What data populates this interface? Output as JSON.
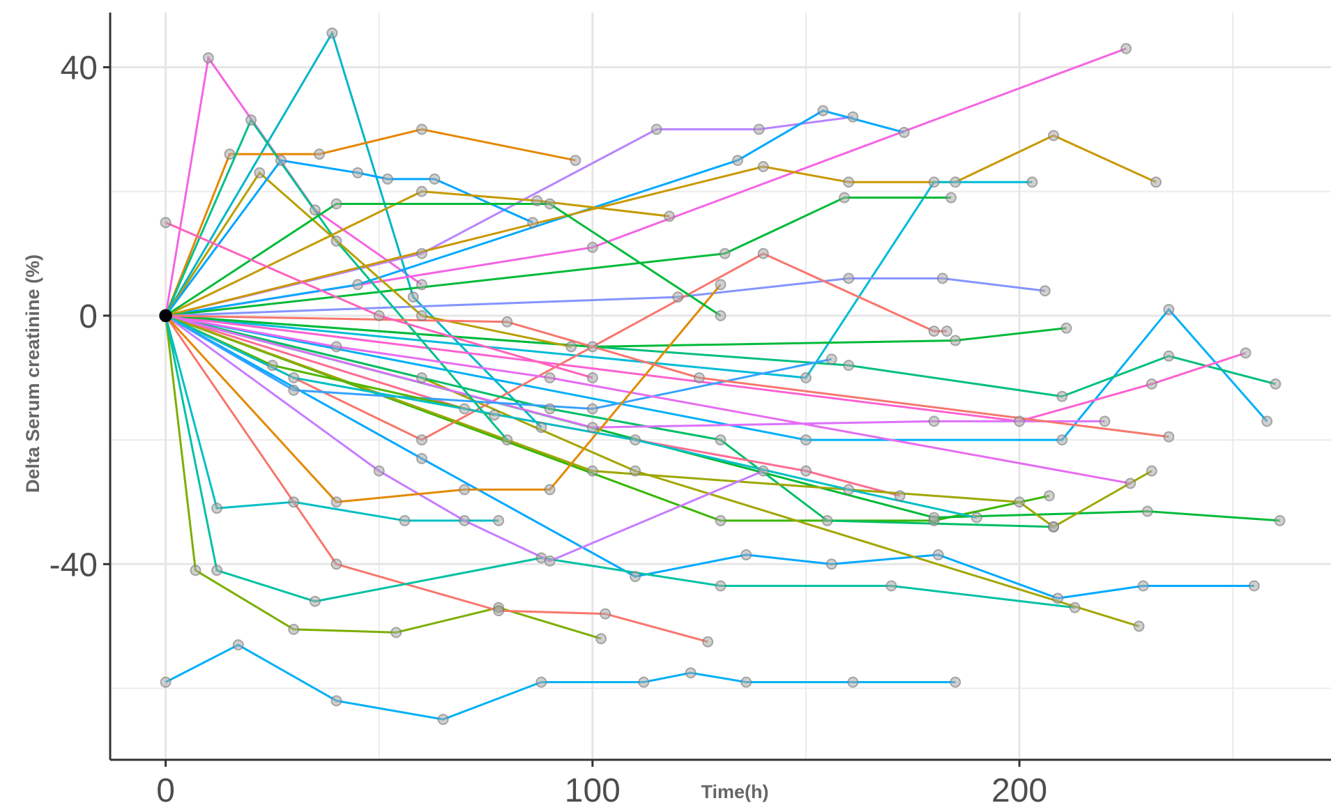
{
  "chart_data": {
    "type": "line",
    "x_label": "Time(h)",
    "y_label": "Delta Serum creatinine (%)",
    "xlim": [
      -13,
      273
    ],
    "ylim": [
      -71.5,
      48.8
    ],
    "xticks": [
      0,
      100,
      200
    ],
    "yticks": [
      -40,
      0,
      40
    ],
    "x_minor_grid": [
      50,
      150,
      250
    ],
    "y_minor_grid": [
      -60,
      -20,
      20
    ],
    "grid": true,
    "series": [
      {
        "color": "#f564e3",
        "x": [
          0,
          10,
          35,
          60
        ],
        "values": [
          0,
          41.5,
          17,
          5
        ]
      },
      {
        "color": "#00b6c8",
        "x": [
          0,
          39,
          58,
          88
        ],
        "values": [
          0,
          45.5,
          3,
          -18
        ]
      },
      {
        "color": "#e58700",
        "x": [
          0,
          15,
          36,
          60,
          96
        ],
        "values": [
          0,
          26,
          26,
          30,
          25
        ]
      },
      {
        "color": "#f564e3",
        "x": [
          0,
          100,
          225
        ],
        "values": [
          0,
          11,
          43
        ]
      },
      {
        "color": "#b983ff",
        "x": [
          0,
          60,
          115,
          139,
          161
        ],
        "values": [
          0,
          10,
          30,
          30,
          32
        ]
      },
      {
        "color": "#00a9ff",
        "x": [
          0,
          45,
          134,
          154,
          173
        ],
        "values": [
          0,
          5,
          25,
          33,
          29.5
        ]
      },
      {
        "color": "#c99800",
        "x": [
          0,
          140,
          160,
          185,
          208,
          232
        ],
        "values": [
          0,
          24,
          21.5,
          21.5,
          29,
          21.5
        ]
      },
      {
        "color": "#00bcd8",
        "x": [
          0,
          150,
          180,
          203
        ],
        "values": [
          0,
          -10,
          21.5,
          21.5
        ]
      },
      {
        "color": "#00ba38",
        "x": [
          0,
          131,
          159,
          184
        ],
        "values": [
          0,
          10,
          19,
          19
        ]
      },
      {
        "color": "#8494ff",
        "x": [
          0,
          120,
          160,
          182,
          206
        ],
        "values": [
          0,
          3,
          6,
          6,
          4
        ]
      },
      {
        "color": "#00b0f6",
        "x": [
          0,
          150,
          210,
          235,
          258
        ],
        "values": [
          0,
          -20,
          -20,
          1,
          -17
        ]
      },
      {
        "color": "#00bf7d",
        "x": [
          0,
          160,
          210,
          235,
          260
        ],
        "values": [
          0,
          -8,
          -13,
          -6.5,
          -11
        ]
      },
      {
        "color": "#fd61d1",
        "x": [
          0,
          200,
          231,
          253
        ],
        "values": [
          0,
          -17,
          -11,
          -6
        ]
      },
      {
        "color": "#39b600",
        "x": [
          0,
          130,
          180,
          207
        ],
        "values": [
          0,
          -33,
          -33,
          -29
        ]
      },
      {
        "color": "#00ba38",
        "x": [
          0,
          180,
          230,
          261
        ],
        "values": [
          0,
          -32.5,
          -31.5,
          -33
        ]
      },
      {
        "color": "#00a9ff",
        "x": [
          0,
          60,
          110,
          136,
          156,
          181,
          209,
          229,
          255
        ],
        "values": [
          0,
          -23,
          -42,
          -38.5,
          -40,
          -38.5,
          -45.5,
          -43.5,
          -43.5
        ]
      },
      {
        "color": "#00bfc4",
        "x": [
          0,
          12,
          30,
          56,
          78
        ],
        "values": [
          0,
          -31,
          -30,
          -33,
          -33
        ]
      },
      {
        "color": "#00b0f6",
        "x": [
          0,
          17,
          40,
          65,
          88,
          112,
          123,
          136,
          161,
          185
        ],
        "values": [
          -59,
          -53,
          -62,
          -65,
          -59,
          -59,
          -57.5,
          -59,
          -59,
          -59
        ]
      },
      {
        "color": "#7cae00",
        "x": [
          0,
          7,
          30,
          54,
          78,
          102
        ],
        "values": [
          0,
          -41,
          -50.5,
          -51,
          -47,
          -52
        ]
      },
      {
        "color": "#f8766d",
        "x": [
          0,
          40,
          78,
          103,
          127
        ],
        "values": [
          0,
          -40,
          -47.5,
          -48,
          -52.5
        ]
      },
      {
        "color": "#00c1a3",
        "x": [
          0,
          12,
          35,
          88,
          130,
          170,
          213
        ],
        "values": [
          0,
          -41,
          -46,
          -39,
          -43.5,
          -43.5,
          -47
        ]
      },
      {
        "color": "#a3a500",
        "x": [
          0,
          60,
          110,
          228
        ],
        "values": [
          0,
          -10,
          -25,
          -50
        ]
      },
      {
        "color": "#f8766d",
        "x": [
          0,
          60,
          140,
          180,
          183
        ],
        "values": [
          0,
          -20,
          10,
          -2.5,
          -2.5
        ]
      },
      {
        "color": "#00be67",
        "x": [
          0,
          90,
          130,
          155,
          208
        ],
        "values": [
          0,
          -15,
          -20,
          -33,
          -34
        ]
      },
      {
        "color": "#ff6c91",
        "x": [
          0,
          70,
          150,
          172
        ],
        "values": [
          0,
          -15,
          -25,
          -29
        ]
      },
      {
        "color": "#dc71fa",
        "x": [
          0,
          100,
          180,
          220
        ],
        "values": [
          0,
          -18,
          -17,
          -17
        ]
      },
      {
        "color": "#9da700",
        "x": [
          0,
          100,
          200,
          208,
          231
        ],
        "values": [
          0,
          -25,
          -30,
          -34,
          -25
        ]
      },
      {
        "color": "#00ba38",
        "x": [
          0,
          100,
          185,
          211
        ],
        "values": [
          0,
          -5,
          -4,
          -2
        ]
      },
      {
        "color": "#35a2ff",
        "x": [
          0,
          30,
          100,
          156
        ],
        "values": [
          0,
          -12,
          -15,
          -7
        ]
      },
      {
        "color": "#00c08b",
        "x": [
          0,
          20,
          40,
          80
        ],
        "values": [
          0,
          31.5,
          12,
          -20
        ]
      },
      {
        "color": "#b79f00",
        "x": [
          0,
          22,
          60,
          95
        ],
        "values": [
          0,
          23,
          0,
          -5
        ]
      },
      {
        "color": "#00a5ff",
        "x": [
          0,
          27,
          45,
          52,
          63,
          86
        ],
        "values": [
          0,
          25,
          23,
          22,
          22,
          15
        ]
      },
      {
        "color": "#e76bf3",
        "x": [
          0,
          40,
          90,
          226
        ],
        "values": [
          0,
          -5,
          -10,
          -27
        ]
      },
      {
        "color": "#53b400",
        "x": [
          0,
          25,
          77
        ],
        "values": [
          0,
          -8,
          -16
        ]
      },
      {
        "color": "#c77cff",
        "x": [
          0,
          50,
          70,
          90,
          140
        ],
        "values": [
          0,
          -25,
          -33,
          -39.5,
          -25
        ]
      },
      {
        "color": "#e38900",
        "x": [
          0,
          40,
          70,
          90,
          130
        ],
        "values": [
          0,
          -30,
          -28,
          -28,
          5
        ]
      },
      {
        "color": "#c49a00",
        "x": [
          0,
          60,
          87,
          118
        ],
        "values": [
          0,
          20,
          18.5,
          16
        ]
      },
      {
        "color": "#00bfc4",
        "x": [
          0,
          30,
          110,
          160,
          190
        ],
        "values": [
          0,
          -10,
          -20,
          -28,
          -32.5
        ]
      },
      {
        "color": "#f8766d",
        "x": [
          0,
          80,
          125,
          235
        ],
        "values": [
          0,
          -1,
          -10,
          -19.5
        ]
      },
      {
        "color": "#00ba38",
        "x": [
          0,
          40,
          90,
          130
        ],
        "values": [
          0,
          18,
          18,
          0
        ]
      },
      {
        "color": "#ff62bc",
        "x": [
          0,
          50,
          100
        ],
        "values": [
          15,
          0,
          -10
        ]
      }
    ]
  }
}
